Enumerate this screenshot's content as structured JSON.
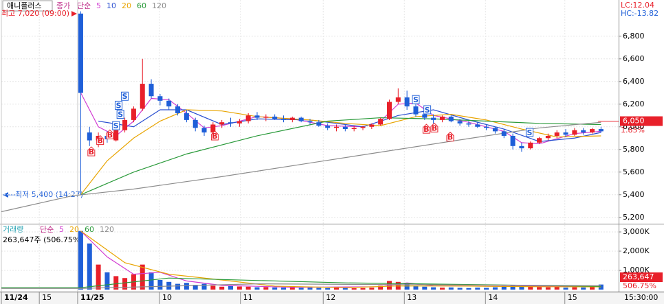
{
  "chart_data": {
    "type": "candlestick",
    "stock_name": "애니플러스",
    "ma_kind": "종가",
    "ma_method": "단순",
    "lc": "LC:12.04",
    "hc": "HC:-13.82",
    "high_note": "최고 7,020 (09:00)",
    "low_note": "최저 5,400 (14:27)",
    "last_price": {
      "value": 6050,
      "label": "6,050"
    },
    "change": "1.85%",
    "xlim": [
      -9,
      61
    ],
    "xticks": [
      {
        "value": -9,
        "label": "11/24"
      },
      {
        "value": -4.7,
        "label": "15"
      },
      {
        "value": -0.35,
        "label": "11/25"
      },
      {
        "value": 8.93,
        "label": "10"
      },
      {
        "value": 18.1,
        "label": "11"
      },
      {
        "value": 27.5,
        "label": "12"
      },
      {
        "value": 36.7,
        "label": "13"
      },
      {
        "value": 45.9,
        "label": "14"
      },
      {
        "value": 54.9,
        "label": "15"
      }
    ],
    "time_now": "15:30:00",
    "ylim": [
      5150,
      7120
    ],
    "yticks": [
      {
        "value": 5200,
        "label": "5,200"
      },
      {
        "value": 5400,
        "label": "5,400"
      },
      {
        "value": 5600,
        "label": "5,600"
      },
      {
        "value": 5800,
        "label": "5,800"
      },
      {
        "value": 6000,
        "label": "6,000"
      },
      {
        "value": 6200,
        "label": "6,200"
      },
      {
        "value": 6400,
        "label": "6,400"
      },
      {
        "value": 6600,
        "label": "6,600"
      },
      {
        "value": 6800,
        "label": "6,800"
      }
    ],
    "up_color": "#e8202a",
    "down_color": "#1f5fd8",
    "open": [
      7000,
      5950,
      5880,
      5920,
      5880,
      5970,
      6060,
      6160,
      6380,
      6270,
      6230,
      6180,
      6120,
      6060,
      5990,
      5950,
      6020,
      6040,
      6030,
      6050,
      6100,
      6080,
      6090,
      6070,
      6060,
      6080,
      6050,
      6040,
      6010,
      5990,
      6000,
      5980,
      5990,
      6000,
      6020,
      6070,
      6220,
      6260,
      6180,
      6110,
      6080,
      6060,
      6090,
      6050,
      6030,
      6020,
      6000,
      5990,
      5960,
      5920,
      5830,
      5810,
      5860,
      5900,
      5920,
      5950,
      5930,
      5970,
      5950,
      5980
    ],
    "high": [
      7020,
      6000,
      5950,
      5960,
      5990,
      6080,
      6180,
      6600,
      6420,
      6290,
      6250,
      6200,
      6150,
      6080,
      6010,
      6040,
      6060,
      6080,
      6070,
      6120,
      6130,
      6110,
      6110,
      6100,
      6090,
      6090,
      6070,
      6060,
      6030,
      6020,
      6020,
      6010,
      6010,
      6030,
      6080,
      6240,
      6340,
      6320,
      6200,
      6140,
      6110,
      6100,
      6100,
      6070,
      6050,
      6040,
      6020,
      6000,
      5980,
      5940,
      5860,
      5870,
      5910,
      5940,
      5970,
      5980,
      5990,
      5990,
      5990,
      6000
    ],
    "low": [
      5400,
      5830,
      5820,
      5860,
      5870,
      5950,
      6040,
      6140,
      6250,
      6190,
      6150,
      6100,
      6040,
      5960,
      5920,
      5940,
      5990,
      6000,
      6000,
      6030,
      6060,
      6050,
      6060,
      6040,
      6040,
      6040,
      6020,
      6000,
      5970,
      5960,
      5960,
      5960,
      5970,
      5980,
      6010,
      6060,
      6200,
      6150,
      6090,
      6060,
      6030,
      6040,
      6040,
      6010,
      6000,
      5990,
      5970,
      5940,
      5900,
      5800,
      5780,
      5800,
      5850,
      5880,
      5900,
      5910,
      5920,
      5930,
      5940,
      5950
    ],
    "close": [
      6300,
      5880,
      5920,
      5890,
      5970,
      6060,
      6160,
      6380,
      6270,
      6230,
      6180,
      6120,
      6060,
      5990,
      5950,
      6020,
      6040,
      6030,
      6050,
      6100,
      6080,
      6090,
      6070,
      6060,
      6080,
      6050,
      6040,
      6010,
      5990,
      6000,
      5980,
      5990,
      6000,
      6020,
      6070,
      6220,
      6260,
      6180,
      6110,
      6080,
      6060,
      6090,
      6050,
      6030,
      6020,
      6000,
      5990,
      5960,
      5920,
      5830,
      5810,
      5860,
      5900,
      5920,
      5950,
      5930,
      5970,
      5950,
      5980,
      5960
    ],
    "ma_series": [
      {
        "name": "5",
        "color": "#d23cd2",
        "x": [
          0,
          2,
          4,
          6,
          8,
          10,
          12,
          14,
          16,
          18,
          20,
          24,
          28,
          32,
          34,
          36,
          38,
          40,
          44,
          48,
          50,
          52,
          56,
          59
        ],
        "values": [
          6300,
          6000,
          5920,
          6050,
          6250,
          6240,
          6120,
          5990,
          6010,
          6050,
          6090,
          6070,
          6010,
          6000,
          6050,
          6200,
          6210,
          6100,
          6040,
          5960,
          5860,
          5850,
          5940,
          5960
        ]
      },
      {
        "name": "10",
        "color": "#2a4fd0",
        "x": [
          2,
          6,
          9,
          12,
          16,
          20,
          26,
          32,
          36,
          40,
          44,
          48,
          52,
          56,
          59
        ],
        "values": [
          6050,
          6000,
          6150,
          6150,
          6020,
          6070,
          6060,
          6000,
          6100,
          6150,
          6060,
          5980,
          5870,
          5900,
          5950
        ]
      },
      {
        "name": "20",
        "color": "#e8a400",
        "x": [
          0,
          3,
          6,
          9,
          12,
          16,
          20,
          26,
          30,
          34,
          38,
          42,
          46,
          50,
          54,
          59
        ],
        "values": [
          5400,
          5700,
          5900,
          6050,
          6150,
          6140,
          6090,
          6060,
          6030,
          6010,
          6090,
          6110,
          6060,
          5980,
          5910,
          5920
        ]
      },
      {
        "name": "60",
        "color": "#2a9a3a",
        "x": [
          0,
          6,
          12,
          20,
          28,
          34,
          40,
          46,
          52,
          59
        ],
        "values": [
          5400,
          5600,
          5760,
          5920,
          6050,
          6080,
          6070,
          6050,
          6030,
          6020
        ]
      },
      {
        "name": "120",
        "color": "#8c8c8c",
        "x": [
          -9,
          -1,
          6,
          16,
          26,
          36,
          46,
          52,
          59
        ],
        "values": [
          5250,
          5390,
          5450,
          5560,
          5680,
          5800,
          5920,
          5990,
          6040
        ]
      }
    ],
    "signals": [
      {
        "x": 4.0,
        "y": 6010,
        "label": "S"
      },
      {
        "x": 4.5,
        "y": 6110,
        "label": "S"
      },
      {
        "x": 4.3,
        "y": 6190,
        "label": "S"
      },
      {
        "x": 5.0,
        "y": 6270,
        "label": "S"
      },
      {
        "x": 38.0,
        "y": 6240,
        "label": "S"
      },
      {
        "x": 39.3,
        "y": 6150,
        "label": "S"
      },
      {
        "x": 50.9,
        "y": 5950,
        "label": "S"
      },
      {
        "x": 1.2,
        "y": 5780,
        "label": "B"
      },
      {
        "x": 2.2,
        "y": 5880,
        "label": "B"
      },
      {
        "x": 3.3,
        "y": 5930,
        "label": "B"
      },
      {
        "x": 15.2,
        "y": 5920,
        "label": "B"
      },
      {
        "x": 39.2,
        "y": 5980,
        "label": "B"
      },
      {
        "x": 40.1,
        "y": 5990,
        "label": "B"
      },
      {
        "x": 41.9,
        "y": 5910,
        "label": "B"
      }
    ],
    "volume": {
      "label": "거래량",
      "ma_method": "단순",
      "summary": "263,647주 (506.75%)",
      "last": {
        "value": 263.647,
        "label": "263,647"
      },
      "ratio": "506.75%",
      "ylim": [
        0,
        3357
      ],
      "yticks": [
        {
          "value": 1000,
          "label": "1,000K"
        },
        {
          "value": 2000,
          "label": "2,000K"
        },
        {
          "value": 3000,
          "label": "3,000K"
        }
      ],
      "values": [
        3050,
        2400,
        1300,
        900,
        700,
        600,
        800,
        1300,
        900,
        500,
        400,
        300,
        350,
        250,
        300,
        200,
        150,
        180,
        160,
        150,
        120,
        130,
        110,
        100,
        120,
        90,
        100,
        90,
        80,
        90,
        80,
        70,
        80,
        100,
        200,
        450,
        400,
        300,
        200,
        150,
        120,
        100,
        110,
        90,
        80,
        100,
        90,
        120,
        200,
        250,
        180,
        150,
        130,
        120,
        150,
        100,
        120,
        110,
        130,
        263.647
      ],
      "ma_series": [
        {
          "name": "5",
          "color": "#d23cd2",
          "x": [
            0,
            3,
            6,
            9,
            12,
            16,
            24,
            34,
            37,
            40,
            48,
            52,
            59
          ],
          "values": [
            3050,
            1700,
            800,
            900,
            450,
            220,
            120,
            150,
            350,
            200,
            170,
            180,
            150
          ]
        },
        {
          "name": "20",
          "color": "#e8a400",
          "x": [
            0,
            5,
            10,
            16,
            22,
            30,
            36,
            44,
            52,
            59
          ],
          "values": [
            3050,
            1400,
            800,
            500,
            180,
            100,
            190,
            180,
            150,
            140
          ]
        },
        {
          "name": "60",
          "color": "#2a9a3a",
          "x": [
            -9,
            0,
            10,
            30,
            59
          ],
          "values": [
            100,
            100,
            600,
            350,
            170
          ]
        },
        {
          "name": "120",
          "color": "#8c8c8c",
          "x": [
            -9,
            0,
            20,
            59
          ],
          "values": [
            60,
            60,
            300,
            200
          ]
        }
      ]
    }
  }
}
